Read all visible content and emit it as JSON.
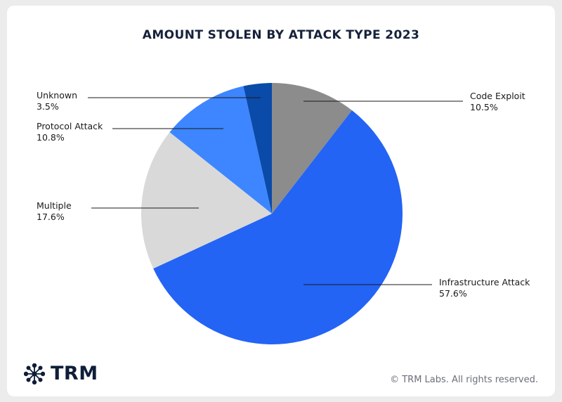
{
  "chart_data": {
    "type": "pie",
    "title": "AMOUNT STOLEN BY ATTACK TYPE 2023",
    "slices": [
      {
        "label": "Code Exploit",
        "value": 10.5,
        "value_label": "10.5%",
        "color": "#8c8c8c"
      },
      {
        "label": "Infrastructure Attack",
        "value": 57.6,
        "value_label": "57.6%",
        "color": "#2364f4"
      },
      {
        "label": "Multiple",
        "value": 17.6,
        "value_label": "17.6%",
        "color": "#d9d9d9"
      },
      {
        "label": "Protocol Attack",
        "value": 10.8,
        "value_label": "10.8%",
        "color": "#3d86ff"
      },
      {
        "label": "Unknown",
        "value": 3.5,
        "value_label": "3.5%",
        "color": "#0a4aa8"
      }
    ],
    "start": "12 o'clock",
    "direction": "clockwise"
  },
  "footer": {
    "brand": "TRM",
    "copyright": "© TRM Labs. All rights reserved."
  }
}
